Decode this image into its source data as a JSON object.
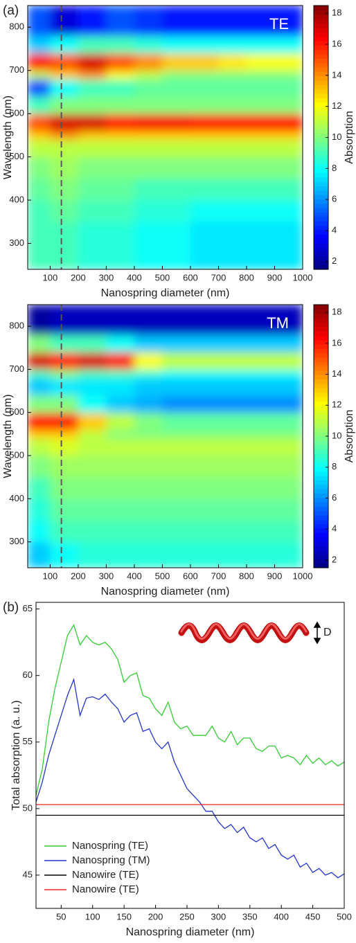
{
  "chart_data": [
    {
      "type": "heatmap",
      "label": "(a)",
      "annotation": "TE",
      "xlabel": "Nanospring diameter (nm)",
      "ylabel": "Wavelength (nm)",
      "colorbar_label": "Absorption",
      "colormap": "jet",
      "xlim": [
        20,
        1000
      ],
      "ylim": [
        240,
        850
      ],
      "xticks": [
        100,
        200,
        300,
        400,
        500,
        600,
        700,
        800,
        900,
        1000
      ],
      "yticks": [
        300,
        400,
        500,
        600,
        700,
        800
      ],
      "clim": [
        1.5,
        18.5
      ],
      "cticks": [
        2,
        4,
        6,
        8,
        10,
        12,
        14,
        16,
        18
      ],
      "marker_x": 140,
      "x_bins": [
        20,
        100,
        200,
        300,
        400,
        500,
        600,
        700,
        800,
        900,
        1000
      ],
      "y_bins": [
        240,
        300,
        350,
        400,
        450,
        500,
        540,
        560,
        600,
        640,
        680,
        700,
        740,
        780,
        850
      ],
      "values": [
        [
          9,
          9,
          8.5,
          8.5,
          8,
          8,
          7.5,
          7.5,
          7.5,
          7.5
        ],
        [
          9,
          9,
          8.5,
          8.5,
          8,
          8,
          7.5,
          7.5,
          7.5,
          7.5
        ],
        [
          9,
          9.5,
          9,
          9,
          8.5,
          8.5,
          8,
          8,
          8,
          8
        ],
        [
          9.5,
          10,
          9.5,
          9.5,
          9,
          9,
          9,
          9,
          9,
          9
        ],
        [
          10,
          10.5,
          10,
          10,
          10,
          10,
          10,
          10,
          10,
          10
        ],
        [
          11,
          11,
          11,
          11,
          11,
          11,
          11,
          11,
          11,
          11
        ],
        [
          13,
          14,
          13,
          13,
          13,
          13,
          13,
          13,
          13,
          13
        ],
        [
          15,
          17,
          17,
          16,
          16.5,
          16.5,
          16,
          16,
          16,
          16
        ],
        [
          9,
          10,
          10,
          10,
          10,
          10,
          10,
          10,
          10,
          10
        ],
        [
          5,
          8,
          9,
          9,
          9.5,
          9.5,
          9.5,
          9.5,
          9.5,
          9.5
        ],
        [
          11,
          13,
          14,
          12,
          11,
          10,
          10,
          10,
          10,
          10
        ],
        [
          16,
          15,
          17,
          15,
          14,
          13,
          13,
          12.5,
          12,
          12
        ],
        [
          7,
          8,
          9,
          9,
          8.5,
          8,
          8,
          8,
          8,
          8
        ],
        [
          5,
          3,
          4,
          5,
          4.5,
          4,
          4,
          4,
          4,
          4
        ]
      ]
    },
    {
      "type": "heatmap",
      "annotation": "TM",
      "xlabel": "Nanospring diameter (nm)",
      "ylabel": "Wavelength (nm)",
      "colorbar_label": "Absorption",
      "colormap": "jet",
      "xlim": [
        20,
        1000
      ],
      "ylim": [
        240,
        850
      ],
      "xticks": [
        100,
        200,
        300,
        400,
        500,
        600,
        700,
        800,
        900,
        1000
      ],
      "yticks": [
        300,
        400,
        500,
        600,
        700,
        800
      ],
      "clim": [
        1.5,
        18.5
      ],
      "cticks": [
        2,
        4,
        6,
        8,
        10,
        12,
        14,
        16,
        18
      ],
      "marker_x": 140,
      "x_bins": [
        20,
        100,
        200,
        300,
        400,
        500,
        600,
        700,
        800,
        900,
        1000
      ],
      "y_bins": [
        240,
        300,
        350,
        400,
        450,
        500,
        540,
        560,
        600,
        640,
        680,
        700,
        740,
        780,
        850
      ],
      "values": [
        [
          7,
          8,
          8.5,
          8.5,
          8.5,
          8.5,
          8.5,
          8.5,
          8.5,
          8.5
        ],
        [
          8,
          9,
          9,
          9,
          9,
          9,
          9,
          9,
          9,
          9
        ],
        [
          8.5,
          9.5,
          9.5,
          9.5,
          9.5,
          9.5,
          9.5,
          9.5,
          9.5,
          9.5
        ],
        [
          9,
          10,
          10,
          10,
          10,
          10,
          10,
          10,
          10,
          10
        ],
        [
          10,
          10.5,
          10.5,
          10.5,
          10.5,
          10.5,
          10.5,
          10.5,
          10.5,
          10.5
        ],
        [
          11,
          11.5,
          11,
          11,
          11,
          11,
          11,
          11,
          11,
          11
        ],
        [
          13,
          13,
          11,
          10,
          10,
          10,
          10,
          10,
          10,
          10
        ],
        [
          16,
          16,
          13,
          11,
          10,
          9.5,
          9.5,
          9.5,
          9.5,
          9.5
        ],
        [
          10,
          10,
          8,
          7,
          6.5,
          6,
          6,
          6,
          6,
          6
        ],
        [
          7,
          7.5,
          7.5,
          7.5,
          7,
          7,
          7,
          7,
          7,
          7
        ],
        [
          9,
          10,
          9,
          9,
          8.5,
          8,
          8,
          8,
          8,
          8
        ],
        [
          17,
          16,
          17,
          16,
          12,
          11,
          11,
          11,
          11,
          11
        ],
        [
          10,
          9,
          9,
          8,
          7,
          7,
          7,
          7,
          7,
          7
        ],
        [
          2,
          2.5,
          2.5,
          2.5,
          2.5,
          2.5,
          2.5,
          2.5,
          2.5,
          2.5
        ]
      ]
    },
    {
      "type": "line",
      "label": "(b)",
      "xlabel": "Nanospring diameter (nm)",
      "ylabel": "Total absorption (a. u.)",
      "inset_label": "D",
      "legend": "lower left",
      "xlim": [
        10,
        500
      ],
      "ylim": [
        42.5,
        65.5
      ],
      "xticks": [
        50,
        100,
        150,
        200,
        250,
        300,
        350,
        400,
        450,
        500
      ],
      "yticks": [
        45,
        50,
        55,
        60,
        65
      ],
      "x": [
        10,
        20,
        30,
        40,
        50,
        60,
        70,
        80,
        90,
        100,
        110,
        120,
        130,
        140,
        150,
        160,
        170,
        180,
        190,
        200,
        210,
        220,
        230,
        240,
        250,
        260,
        270,
        280,
        290,
        300,
        310,
        320,
        330,
        340,
        350,
        360,
        370,
        380,
        390,
        400,
        410,
        420,
        430,
        440,
        450,
        460,
        470,
        480,
        490,
        500
      ],
      "series": [
        {
          "name": "Nanospring (TE)",
          "color": "#33cc33",
          "values": [
            51,
            53,
            56.5,
            59,
            61,
            63,
            63.8,
            62.3,
            63,
            62.5,
            62.3,
            62.5,
            62,
            61.2,
            59.5,
            60,
            60.2,
            58.5,
            58.3,
            57.5,
            57,
            58,
            56.5,
            56,
            56.2,
            55.5,
            55.5,
            55.5,
            56.2,
            55.3,
            55,
            55.8,
            54.8,
            55.3,
            55.3,
            54.5,
            54.3,
            54.7,
            54.7,
            53.8,
            54,
            53.8,
            53.3,
            54,
            53.4,
            53.8,
            53.3,
            53.6,
            53.2,
            53.5
          ]
        },
        {
          "name": "Nanospring (TM)",
          "color": "#2233cc",
          "values": [
            50.5,
            52,
            54,
            55.5,
            57,
            58.5,
            59.7,
            57,
            58.3,
            58.4,
            58.2,
            58.6,
            58,
            57.5,
            56.5,
            57,
            57.2,
            55.8,
            56,
            55,
            54.5,
            55,
            53.5,
            52.5,
            51.5,
            51,
            50.5,
            49.8,
            49.8,
            49,
            48.5,
            48.8,
            48.2,
            48.6,
            47.8,
            47.5,
            47.8,
            47,
            47.3,
            46.5,
            46.2,
            46.5,
            45.6,
            45.9,
            45.2,
            45.5,
            45,
            45.2,
            44.8,
            45.1
          ]
        },
        {
          "name": "Nanowire (TE)",
          "color": "#000000",
          "values": [
            49.5,
            49.5,
            49.5,
            49.5,
            49.5,
            49.5,
            49.5,
            49.5,
            49.5,
            49.5,
            49.5,
            49.5,
            49.5,
            49.5,
            49.5,
            49.5,
            49.5,
            49.5,
            49.5,
            49.5,
            49.5,
            49.5,
            49.5,
            49.5,
            49.5,
            49.5,
            49.5,
            49.5,
            49.5,
            49.5,
            49.5,
            49.5,
            49.5,
            49.5,
            49.5,
            49.5,
            49.5,
            49.5,
            49.5,
            49.5,
            49.5,
            49.5,
            49.5,
            49.5,
            49.5,
            49.5,
            49.5,
            49.5,
            49.5,
            49.5
          ]
        },
        {
          "name": "Nanowire (TE)",
          "color": "#ee2222",
          "values": [
            50.3,
            50.3,
            50.3,
            50.3,
            50.3,
            50.3,
            50.3,
            50.3,
            50.3,
            50.3,
            50.3,
            50.3,
            50.3,
            50.3,
            50.3,
            50.3,
            50.3,
            50.3,
            50.3,
            50.3,
            50.3,
            50.3,
            50.3,
            50.3,
            50.3,
            50.3,
            50.3,
            50.3,
            50.3,
            50.3,
            50.3,
            50.3,
            50.3,
            50.3,
            50.3,
            50.3,
            50.3,
            50.3,
            50.3,
            50.3,
            50.3,
            50.3,
            50.3,
            50.3,
            50.3,
            50.3,
            50.3,
            50.3,
            50.3,
            50.3
          ]
        }
      ]
    }
  ]
}
